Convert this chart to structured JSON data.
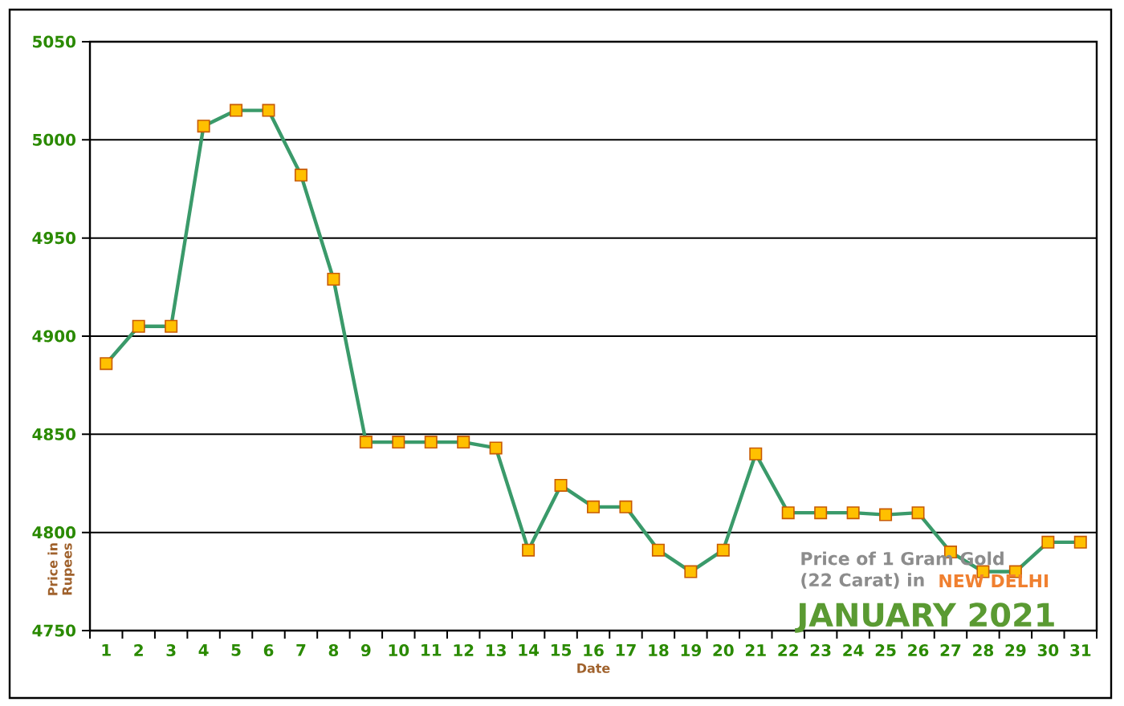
{
  "chart_data": {
    "type": "line",
    "categories": [
      "1",
      "2",
      "3",
      "4",
      "5",
      "6",
      "7",
      "8",
      "9",
      "10",
      "11",
      "12",
      "13",
      "14",
      "15",
      "16",
      "17",
      "18",
      "19",
      "20",
      "21",
      "22",
      "23",
      "24",
      "25",
      "26",
      "27",
      "28",
      "29",
      "30",
      "31"
    ],
    "series": [
      {
        "color": "#3a9a6a",
        "values": [
          4886,
          4905,
          4905,
          5007,
          5015,
          5015,
          4982,
          4929,
          4846,
          4846,
          4846,
          4846,
          4843,
          4791,
          4824,
          4813,
          4813,
          4791,
          4780,
          4791,
          4840,
          4810,
          4810,
          4810,
          4809,
          4810,
          4790,
          4780,
          4780,
          4795,
          4795
        ]
      }
    ],
    "xlabel": "Date",
    "ylabel": "Price in Rupees",
    "ylim": [
      4750,
      5050
    ],
    "yticks": [
      4750,
      4800,
      4850,
      4900,
      4950,
      5000,
      5050
    ],
    "grid": "y",
    "marker": "square",
    "line_style": "solid",
    "annotations": [
      "Price of 1 Gram Gold",
      "(22 Carat) in",
      "NEW DELHI",
      "JANUARY 2021"
    ]
  }
}
